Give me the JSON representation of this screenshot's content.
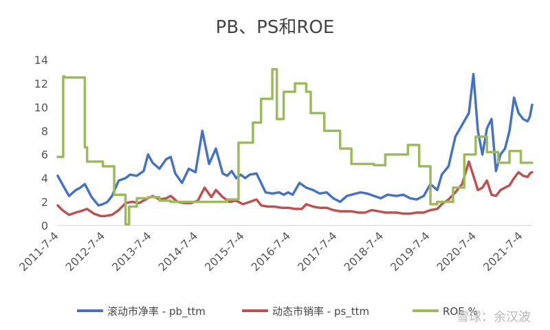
{
  "chart_data": {
    "type": "line",
    "title": "PB、PS和ROE",
    "x_ticks": [
      "2011-7-4",
      "2012-7-4",
      "2013-7-4",
      "2014-7-4",
      "2015-7-4",
      "2016-7-4",
      "2017-7-4",
      "2018-7-4",
      "2019-7-4",
      "2020-7-4",
      "2021-7-4"
    ],
    "y_ticks": [
      0,
      2,
      4,
      6,
      8,
      10,
      12,
      14
    ],
    "ylim": [
      0,
      14
    ],
    "xlim": [
      2011.5,
      2022.0
    ],
    "grid": false,
    "legend_position": "bottom",
    "series": [
      {
        "name": "滚动市净率 - pb_ttm",
        "color": "#4472C4",
        "x": [
          2011.5,
          2011.6,
          2011.75,
          2011.9,
          2012.0,
          2012.1,
          2012.25,
          2012.4,
          2012.5,
          2012.6,
          2012.7,
          2012.85,
          2013.0,
          2013.1,
          2013.25,
          2013.4,
          2013.5,
          2013.6,
          2013.75,
          2013.9,
          2014.0,
          2014.1,
          2014.25,
          2014.4,
          2014.55,
          2014.7,
          2014.85,
          2015.0,
          2015.15,
          2015.25,
          2015.35,
          2015.45,
          2015.55,
          2015.65,
          2015.75,
          2015.9,
          2016.1,
          2016.25,
          2016.4,
          2016.5,
          2016.6,
          2016.7,
          2016.85,
          2017.0,
          2017.15,
          2017.3,
          2017.45,
          2017.6,
          2017.75,
          2017.9,
          2018.0,
          2018.2,
          2018.35,
          2018.5,
          2018.65,
          2018.8,
          2019.0,
          2019.15,
          2019.3,
          2019.45,
          2019.6,
          2019.75,
          2019.9,
          2020.0,
          2020.15,
          2020.3,
          2020.45,
          2020.6,
          2020.7,
          2020.8,
          2020.9,
          2021.0,
          2021.1,
          2021.2,
          2021.3,
          2021.4,
          2021.5,
          2021.6,
          2021.7,
          2021.8,
          2021.9,
          2021.95,
          2022.0
        ],
        "values": [
          4.2,
          3.5,
          2.5,
          3.0,
          3.2,
          3.5,
          2.4,
          1.7,
          1.8,
          2.0,
          2.5,
          3.8,
          4.0,
          4.3,
          4.2,
          4.6,
          6.0,
          5.3,
          4.8,
          5.6,
          5.8,
          4.4,
          3.6,
          4.8,
          4.5,
          8.0,
          5.2,
          6.5,
          4.4,
          4.2,
          4.6,
          4.0,
          4.3,
          4.0,
          4.3,
          4.4,
          2.8,
          2.7,
          2.8,
          2.6,
          2.8,
          2.6,
          3.6,
          3.2,
          3.0,
          2.7,
          2.8,
          2.3,
          2.0,
          2.5,
          2.6,
          2.8,
          2.7,
          2.5,
          2.3,
          2.6,
          2.5,
          2.6,
          2.3,
          2.2,
          2.5,
          3.5,
          3.0,
          4.3,
          5.0,
          7.5,
          8.5,
          9.5,
          12.8,
          8.0,
          6.0,
          8.2,
          9.0,
          4.6,
          6.0,
          6.5,
          8.0,
          10.8,
          9.5,
          9.0,
          8.8,
          9.2,
          10.2
        ]
      },
      {
        "name": "动态市销率 - ps_ttm",
        "color": "#C0504D",
        "x": [
          2011.5,
          2011.6,
          2011.75,
          2011.9,
          2012.0,
          2012.15,
          2012.3,
          2012.45,
          2012.55,
          2012.7,
          2012.85,
          2013.0,
          2013.15,
          2013.3,
          2013.45,
          2013.6,
          2013.75,
          2013.9,
          2014.0,
          2014.15,
          2014.3,
          2014.45,
          2014.6,
          2014.75,
          2014.9,
          2015.0,
          2015.15,
          2015.3,
          2015.45,
          2015.6,
          2015.75,
          2015.9,
          2016.0,
          2016.15,
          2016.3,
          2016.45,
          2016.6,
          2016.75,
          2016.9,
          2017.0,
          2017.15,
          2017.3,
          2017.45,
          2017.6,
          2017.75,
          2017.9,
          2018.0,
          2018.15,
          2018.3,
          2018.45,
          2018.6,
          2018.75,
          2018.9,
          2019.0,
          2019.15,
          2019.3,
          2019.45,
          2019.6,
          2019.75,
          2019.9,
          2020.0,
          2020.15,
          2020.3,
          2020.45,
          2020.6,
          2020.7,
          2020.8,
          2020.9,
          2021.0,
          2021.1,
          2021.2,
          2021.3,
          2021.4,
          2021.5,
          2021.6,
          2021.7,
          2021.8,
          2021.9,
          2021.95,
          2022.0
        ],
        "values": [
          1.7,
          1.3,
          0.9,
          1.1,
          1.2,
          1.4,
          1.0,
          0.8,
          0.8,
          0.9,
          1.3,
          1.9,
          2.0,
          1.9,
          2.2,
          2.5,
          2.2,
          2.3,
          2.5,
          2.0,
          1.9,
          1.9,
          2.1,
          3.2,
          2.4,
          3.0,
          2.4,
          2.0,
          2.1,
          1.8,
          2.0,
          2.2,
          1.7,
          1.6,
          1.6,
          1.5,
          1.5,
          1.4,
          1.4,
          1.8,
          1.6,
          1.5,
          1.5,
          1.3,
          1.2,
          1.2,
          1.2,
          1.1,
          1.1,
          1.3,
          1.2,
          1.1,
          1.1,
          1.1,
          1.0,
          1.0,
          1.1,
          1.1,
          1.3,
          1.4,
          1.8,
          2.2,
          2.8,
          3.5,
          5.4,
          4.2,
          3.0,
          3.2,
          3.8,
          2.6,
          2.5,
          3.0,
          3.2,
          3.4,
          4.0,
          4.5,
          4.2,
          4.1,
          4.4,
          4.5
        ]
      },
      {
        "name": "ROE %",
        "color": "#9BBB59",
        "x": [
          2011.5,
          2011.62,
          2011.62,
          2011.65,
          2011.65,
          2012.1,
          2012.1,
          2012.15,
          2012.15,
          2012.5,
          2012.5,
          2012.75,
          2012.75,
          2013.0,
          2013.0,
          2013.08,
          2013.08,
          2013.25,
          2013.25,
          2013.5,
          2013.5,
          2013.75,
          2013.75,
          2014.0,
          2014.0,
          2014.5,
          2014.5,
          2015.25,
          2015.25,
          2015.5,
          2015.5,
          2015.82,
          2015.82,
          2016.0,
          2016.0,
          2016.25,
          2016.25,
          2016.35,
          2016.35,
          2016.5,
          2016.5,
          2016.75,
          2016.75,
          2017.0,
          2017.0,
          2017.1,
          2017.1,
          2017.4,
          2017.4,
          2017.75,
          2017.75,
          2018.0,
          2018.0,
          2018.5,
          2018.5,
          2018.75,
          2018.75,
          2019.25,
          2019.25,
          2019.5,
          2019.5,
          2019.75,
          2019.75,
          2019.9,
          2019.9,
          2020.25,
          2020.25,
          2020.5,
          2020.5,
          2020.75,
          2020.75,
          2021.0,
          2021.0,
          2021.25,
          2021.25,
          2021.5,
          2021.5,
          2021.75,
          2021.75,
          2022.0
        ],
        "values": [
          5.8,
          5.8,
          12.6,
          12.6,
          12.5,
          12.5,
          6.6,
          6.6,
          5.4,
          5.4,
          5.0,
          5.0,
          2.6,
          2.6,
          0.1,
          0.1,
          1.6,
          1.6,
          2.3,
          2.3,
          2.4,
          2.4,
          2.1,
          2.1,
          2.0,
          2.0,
          2.0,
          2.0,
          2.2,
          2.2,
          7.0,
          7.0,
          8.7,
          8.7,
          10.7,
          10.7,
          13.2,
          13.2,
          9.0,
          9.0,
          11.3,
          11.3,
          12.0,
          12.0,
          11.3,
          11.3,
          9.5,
          9.5,
          8.0,
          8.0,
          6.5,
          6.5,
          5.2,
          5.2,
          5.1,
          5.1,
          6.0,
          6.0,
          6.8,
          6.8,
          5.0,
          5.0,
          1.8,
          1.8,
          2.0,
          2.0,
          3.2,
          3.2,
          6.0,
          6.0,
          7.5,
          7.5,
          6.2,
          6.2,
          5.3,
          5.3,
          6.3,
          6.3,
          5.3,
          5.3
        ]
      }
    ]
  },
  "watermark": "雪球：余汉波"
}
